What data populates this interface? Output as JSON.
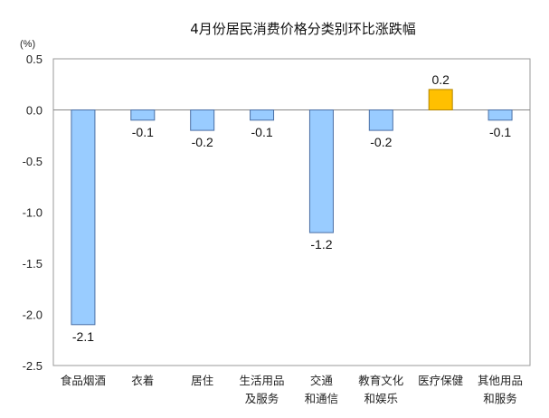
{
  "chart_data": {
    "type": "bar",
    "title": "4月份居民消费价格分类别环比涨跌幅",
    "ylabel": "(%)",
    "xlabel": "",
    "ylim": [
      -2.5,
      0.5
    ],
    "yticks": [
      0.5,
      0.0,
      -0.5,
      -1.0,
      -1.5,
      -2.0,
      -2.5
    ],
    "ytick_labels": [
      "0.5",
      "0.0",
      "-0.5",
      "-1.0",
      "-1.5",
      "-2.0",
      "-2.5"
    ],
    "grid": false,
    "categories": [
      [
        "食品烟酒"
      ],
      [
        "衣着"
      ],
      [
        "居住"
      ],
      [
        "生活用品",
        "及服务"
      ],
      [
        "交通",
        "和通信"
      ],
      [
        "教育文化",
        "和娱乐"
      ],
      [
        "医疗保健"
      ],
      [
        "其他用品",
        "和服务"
      ]
    ],
    "values": [
      -2.1,
      -0.1,
      -0.2,
      -0.1,
      -1.2,
      -0.2,
      0.2,
      -0.1
    ],
    "value_labels": [
      "-2.1",
      "-0.1",
      "-0.2",
      "-0.1",
      "-1.2",
      "-0.2",
      "0.2",
      "-0.1"
    ],
    "colors": {
      "negative": "#99CCFF",
      "positive": "#FFC000",
      "bar_stroke": "#4A6FA5",
      "positive_stroke": "#B38600",
      "axis": "#9A9A9A"
    }
  }
}
